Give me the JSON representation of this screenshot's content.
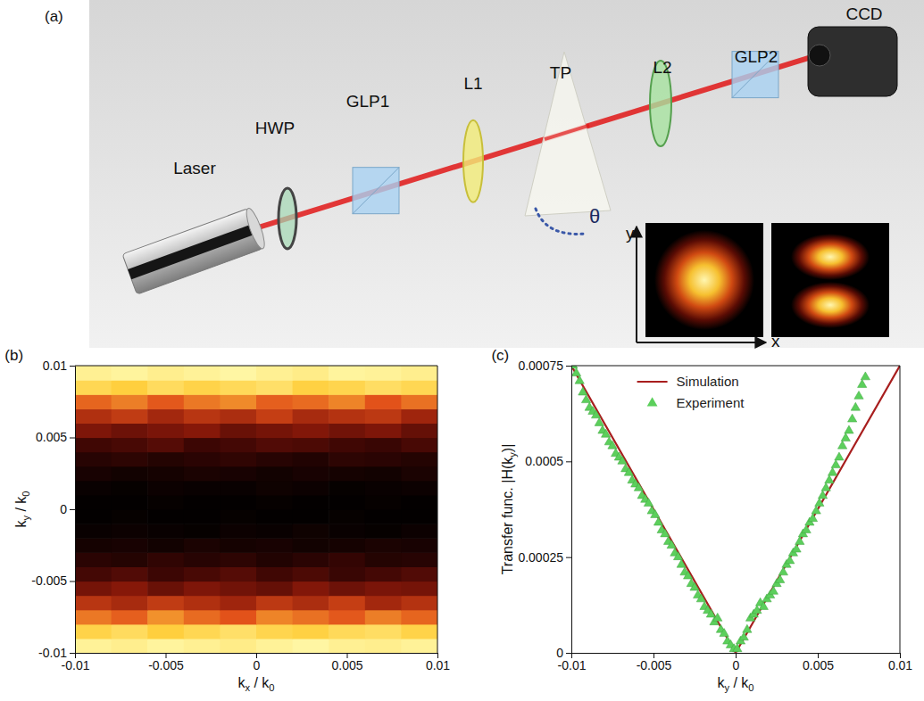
{
  "diagram": {
    "panel_label": "(a)",
    "components": [
      "Laser",
      "HWP",
      "GLP1",
      "L1",
      "TP",
      "L2",
      "GLP2",
      "CCD"
    ],
    "angle_label": "θ",
    "inset_axes": {
      "x": "x",
      "y": "y"
    }
  },
  "chart_data": [
    {
      "type": "heatmap",
      "title": "(b)",
      "x_label": "kx / k0",
      "y_label": "ky / k0",
      "xlim": [
        -0.01,
        0.01
      ],
      "ylim": [
        -0.01,
        0.01
      ],
      "xticks": [
        -0.01,
        -0.005,
        0,
        0.005,
        0.01
      ],
      "yticks": [
        -0.01,
        -0.005,
        0,
        0.005,
        0.01
      ],
      "x": [
        -0.009,
        -0.007,
        -0.005,
        -0.003,
        -0.001,
        0.001,
        0.003,
        0.005,
        0.007,
        0.009
      ],
      "y": [
        -0.0095,
        -0.0085,
        -0.0075,
        -0.0065,
        -0.0055,
        -0.0045,
        -0.0035,
        -0.0025,
        -0.0015,
        -0.0005,
        0.0005,
        0.0015,
        0.0025,
        0.0035,
        0.0045,
        0.0055,
        0.0065,
        0.0075,
        0.0085,
        0.0095
      ],
      "zlim": [
        0,
        1
      ],
      "z": [
        [
          0.97,
          0.95,
          0.98,
          0.96,
          0.94,
          0.97,
          0.99,
          0.96,
          0.95,
          0.97
        ],
        [
          0.82,
          0.86,
          0.8,
          0.84,
          0.88,
          0.83,
          0.81,
          0.85,
          0.87,
          0.82
        ],
        [
          0.66,
          0.62,
          0.7,
          0.64,
          0.6,
          0.68,
          0.65,
          0.61,
          0.67,
          0.63
        ],
        [
          0.5,
          0.46,
          0.52,
          0.48,
          0.44,
          0.51,
          0.47,
          0.53,
          0.45,
          0.49
        ],
        [
          0.34,
          0.38,
          0.31,
          0.36,
          0.33,
          0.3,
          0.37,
          0.32,
          0.35,
          0.34
        ],
        [
          0.22,
          0.25,
          0.2,
          0.23,
          0.26,
          0.21,
          0.24,
          0.19,
          0.22,
          0.25
        ],
        [
          0.14,
          0.12,
          0.16,
          0.13,
          0.15,
          0.11,
          0.14,
          0.17,
          0.12,
          0.13
        ],
        [
          0.07,
          0.08,
          0.06,
          0.09,
          0.07,
          0.08,
          0.06,
          0.07,
          0.09,
          0.08
        ],
        [
          0.03,
          0.04,
          0.03,
          0.02,
          0.04,
          0.03,
          0.05,
          0.03,
          0.02,
          0.04
        ],
        [
          0.01,
          0.02,
          0.01,
          0.01,
          0.02,
          0.01,
          0.01,
          0.02,
          0.01,
          0.01
        ],
        [
          0.01,
          0.01,
          0.02,
          0.01,
          0.01,
          0.02,
          0.01,
          0.01,
          0.02,
          0.01
        ],
        [
          0.03,
          0.02,
          0.04,
          0.03,
          0.03,
          0.05,
          0.04,
          0.02,
          0.03,
          0.04
        ],
        [
          0.08,
          0.06,
          0.07,
          0.09,
          0.08,
          0.06,
          0.08,
          0.07,
          0.06,
          0.09
        ],
        [
          0.13,
          0.15,
          0.12,
          0.14,
          0.16,
          0.13,
          0.11,
          0.15,
          0.14,
          0.12
        ],
        [
          0.21,
          0.23,
          0.26,
          0.2,
          0.22,
          0.25,
          0.24,
          0.21,
          0.19,
          0.23
        ],
        [
          0.36,
          0.32,
          0.35,
          0.38,
          0.31,
          0.34,
          0.37,
          0.33,
          0.36,
          0.3
        ],
        [
          0.48,
          0.52,
          0.45,
          0.5,
          0.47,
          0.53,
          0.46,
          0.49,
          0.51,
          0.44
        ],
        [
          0.63,
          0.67,
          0.61,
          0.66,
          0.69,
          0.62,
          0.64,
          0.68,
          0.6,
          0.65
        ],
        [
          0.84,
          0.8,
          0.86,
          0.82,
          0.85,
          0.88,
          0.81,
          0.83,
          0.87,
          0.84
        ],
        [
          0.96,
          0.98,
          0.95,
          0.97,
          0.99,
          0.96,
          0.94,
          0.98,
          0.97,
          0.95
        ]
      ]
    },
    {
      "type": "line",
      "title": "(c)",
      "x_label": "ky / k0",
      "y_label": "Transfer func. |H(ky)|",
      "xlim": [
        -0.01,
        0.01
      ],
      "ylim": [
        0,
        0.00075
      ],
      "xticks": [
        -0.01,
        -0.005,
        0,
        0.005,
        0.01
      ],
      "yticks": [
        0,
        0.00025,
        0.0005,
        0.00075
      ],
      "legend": "top",
      "series": [
        {
          "name": "Simulation",
          "type": "line",
          "color": "#a81e1e",
          "line_style": "solid",
          "x": [
            -0.01,
            0,
            0.01
          ],
          "values": [
            0.00075,
            0,
            0.00075
          ]
        },
        {
          "name": "Experiment",
          "type": "scatter",
          "marker": "triangle",
          "color": "#5ccf5c",
          "x": [
            -0.0099,
            -0.0097,
            -0.0095,
            -0.0093,
            -0.0091,
            -0.0089,
            -0.0087,
            -0.0085,
            -0.0083,
            -0.0081,
            -0.0079,
            -0.0077,
            -0.0075,
            -0.0073,
            -0.0071,
            -0.0069,
            -0.0067,
            -0.0065,
            -0.0063,
            -0.0061,
            -0.0059,
            -0.0057,
            -0.0055,
            -0.0053,
            -0.0051,
            -0.0049,
            -0.0047,
            -0.0045,
            -0.0043,
            -0.0041,
            -0.0039,
            -0.0037,
            -0.0035,
            -0.0033,
            -0.0031,
            -0.0029,
            -0.0027,
            -0.0025,
            -0.0023,
            -0.0021,
            -0.0019,
            -0.0017,
            -0.0015,
            -0.0013,
            -0.0011,
            -0.0009,
            -0.0007,
            -0.0005,
            -0.0003,
            -0.0001,
            0.0001,
            0.0003,
            0.0005,
            0.0007,
            0.0009,
            0.0011,
            0.0013,
            0.0015,
            0.0017,
            0.0019,
            0.0021,
            0.0023,
            0.0025,
            0.0027,
            0.0029,
            0.0031,
            0.0033,
            0.0035,
            0.0037,
            0.0039,
            0.0041,
            0.0043,
            0.0045,
            0.0047,
            0.0049,
            0.0051,
            0.0053,
            0.0055,
            0.0057,
            0.0059,
            0.0061,
            0.0063,
            0.0065,
            0.0067,
            0.0069,
            0.0071,
            0.0073,
            0.0075,
            0.0077,
            0.0079
          ],
          "values": [
            0.00075,
            0.00073,
            0.00071,
            0.00068,
            0.00066,
            0.00064,
            0.00063,
            0.00062,
            0.0006,
            0.00058,
            0.00057,
            0.00055,
            0.00054,
            0.00052,
            0.00051,
            0.0005,
            0.00048,
            0.00047,
            0.00045,
            0.00044,
            0.00043,
            0.00041,
            0.0004,
            0.00039,
            0.00037,
            0.00036,
            0.00034,
            0.00032,
            0.00031,
            0.00029,
            0.00028,
            0.00026,
            0.00025,
            0.00023,
            0.00021,
            0.0002,
            0.00018,
            0.00017,
            0.00015,
            0.00014,
            0.00012,
            0.00011,
            0.0001,
            8e-05,
            9e-05,
            6e-05,
            5e-05,
            3e-05,
            2e-05,
            1e-05,
            1e-05,
            3e-05,
            4e-05,
            6e-05,
            9e-05,
            0.0001,
            0.00011,
            0.00013,
            0.00012,
            0.00014,
            0.00015,
            0.00016,
            0.00018,
            0.00019,
            0.00021,
            0.00023,
            0.00024,
            0.00026,
            0.00027,
            0.00029,
            0.00031,
            0.00032,
            0.00034,
            0.00035,
            0.00037,
            0.00039,
            0.00041,
            0.00043,
            0.00045,
            0.00047,
            0.00049,
            0.00051,
            0.00054,
            0.00056,
            0.00058,
            0.00061,
            0.00064,
            0.00067,
            0.0007,
            0.00072
          ]
        }
      ]
    }
  ]
}
